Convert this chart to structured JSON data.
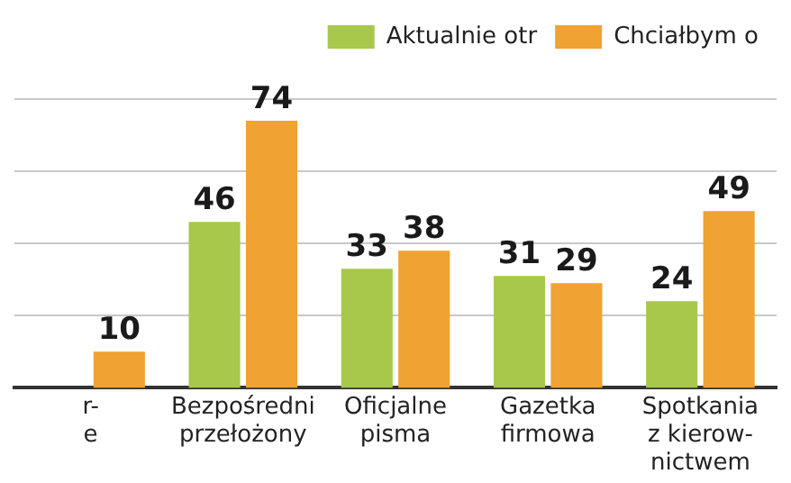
{
  "chart_data": {
    "type": "bar",
    "categories": [
      "r-\ne",
      "Bezpośredni\nprzełożony",
      "Oficjalne\npisma",
      "Gazetka\nfirmowa",
      "Spotkania\nz kierow-\nnictwem"
    ],
    "series": [
      {
        "name": "Aktualnie otr",
        "color": "#a8c84c",
        "values": [
          null,
          46,
          33,
          31,
          24
        ]
      },
      {
        "name": "Chciałbym o",
        "color": "#f0a232",
        "values": [
          10,
          74,
          38,
          29,
          49
        ]
      }
    ],
    "ylim": [
      0,
      80
    ],
    "yticks": [
      {
        "value": 20,
        "label": null
      },
      {
        "value": 40,
        "label": null
      },
      {
        "value": 60,
        "label": null
      },
      {
        "value": 80,
        "label": null
      }
    ],
    "tick_labels": "x",
    "grid": "y",
    "legend": "top right",
    "data_labels": true
  }
}
